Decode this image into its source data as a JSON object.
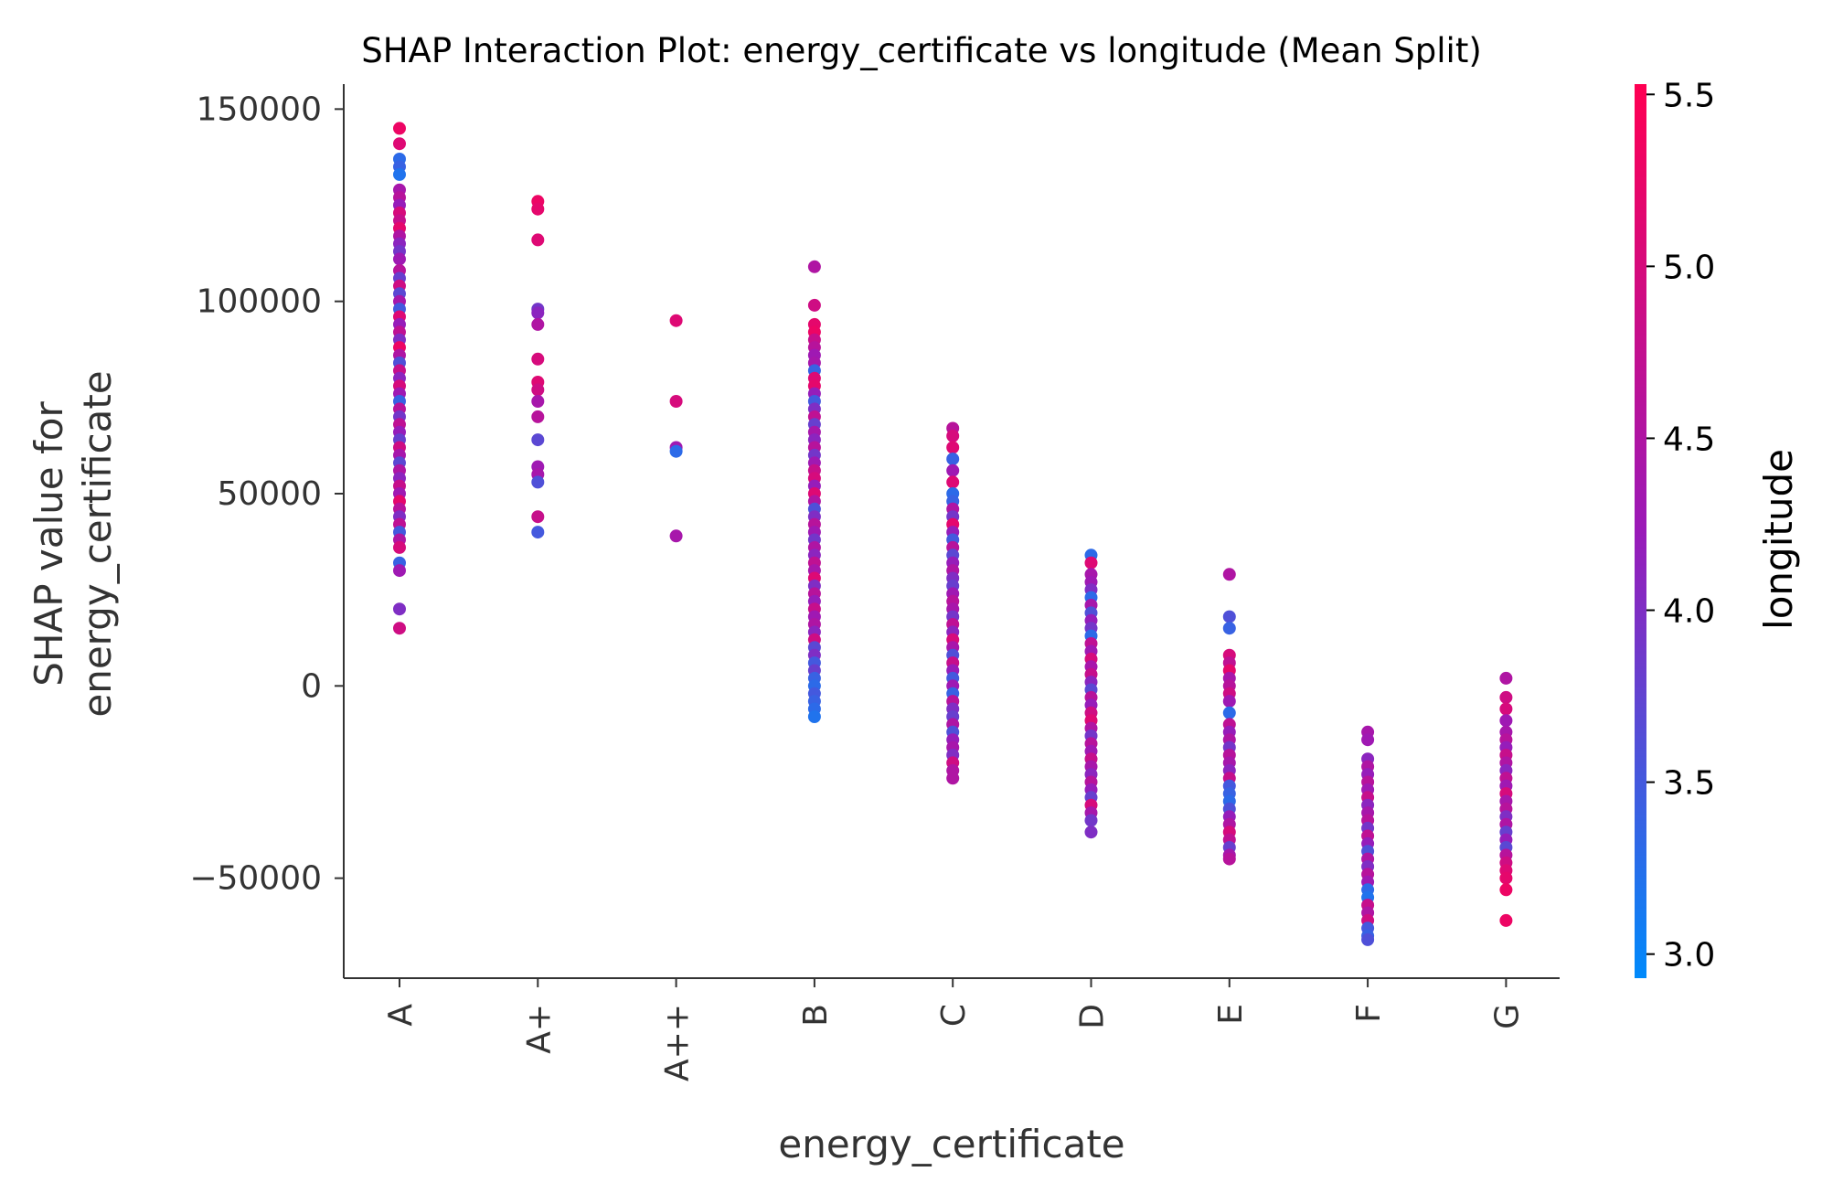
{
  "chart_data": {
    "type": "scatter",
    "title": "SHAP Interaction Plot: energy_certificate vs longitude (Mean Split)",
    "xlabel": "energy_certificate",
    "ylabel_line1": "SHAP value for",
    "ylabel_line2": "energy_certificate",
    "categories": [
      "A",
      "A+",
      "A++",
      "B",
      "C",
      "D",
      "E",
      "F",
      "G"
    ],
    "y_ticks": [
      {
        "value": 150000,
        "label": "150000"
      },
      {
        "value": 100000,
        "label": "100000"
      },
      {
        "value": 50000,
        "label": "50000"
      },
      {
        "value": 0,
        "label": "0"
      },
      {
        "value": -50000,
        "label": "−50000"
      }
    ],
    "ylim": [
      -76000,
      156500
    ],
    "grid": false,
    "colorbar": {
      "label": "longitude",
      "range": [
        2.93,
        5.53
      ],
      "ticks": [
        {
          "value": 5.5,
          "label": "5.5"
        },
        {
          "value": 5.0,
          "label": "5.0"
        },
        {
          "value": 4.5,
          "label": "4.5"
        },
        {
          "value": 4.0,
          "label": "4.0"
        },
        {
          "value": 3.5,
          "label": "3.5"
        },
        {
          "value": 3.0,
          "label": "3.0"
        }
      ],
      "colormap_low": "#008afb",
      "colormap_mid": "#9a1ab8",
      "colormap_high": "#ff0052"
    },
    "series": [
      {
        "category": "A",
        "points": [
          [
            145000,
            5.3
          ],
          [
            141000,
            5.1
          ],
          [
            137000,
            3.3
          ],
          [
            135000,
            3.4
          ],
          [
            133000,
            3.2
          ],
          [
            129000,
            4.4
          ],
          [
            127000,
            4.6
          ],
          [
            125000,
            4.2
          ],
          [
            123000,
            5.0
          ],
          [
            121000,
            4.8
          ],
          [
            119000,
            5.2
          ],
          [
            117000,
            4.5
          ],
          [
            115000,
            4.1
          ],
          [
            113000,
            3.9
          ],
          [
            111000,
            4.3
          ],
          [
            108000,
            4.6
          ],
          [
            106000,
            3.8
          ],
          [
            104000,
            4.9
          ],
          [
            102000,
            3.7
          ],
          [
            100000,
            4.4
          ],
          [
            98000,
            3.5
          ],
          [
            96000,
            5.1
          ],
          [
            94000,
            4.2
          ],
          [
            92000,
            4.7
          ],
          [
            90000,
            4.0
          ],
          [
            88000,
            5.3
          ],
          [
            86000,
            4.5
          ],
          [
            84000,
            3.6
          ],
          [
            82000,
            4.8
          ],
          [
            80000,
            4.1
          ],
          [
            78000,
            5.0
          ],
          [
            76000,
            4.3
          ],
          [
            74000,
            3.4
          ],
          [
            72000,
            4.6
          ],
          [
            70000,
            3.9
          ],
          [
            68000,
            4.7
          ],
          [
            66000,
            4.2
          ],
          [
            64000,
            3.8
          ],
          [
            62000,
            4.9
          ],
          [
            60000,
            4.4
          ],
          [
            58000,
            3.7
          ],
          [
            56000,
            4.5
          ],
          [
            54000,
            4.1
          ],
          [
            52000,
            4.8
          ],
          [
            50000,
            4.3
          ],
          [
            48000,
            5.2
          ],
          [
            46000,
            4.6
          ],
          [
            44000,
            4.0
          ],
          [
            42000,
            4.7
          ],
          [
            40000,
            3.5
          ],
          [
            38000,
            4.5
          ],
          [
            36000,
            5.0
          ],
          [
            32000,
            3.4
          ],
          [
            30000,
            4.3
          ],
          [
            20000,
            4.0
          ],
          [
            15000,
            4.9
          ]
        ]
      },
      {
        "category": "A+",
        "points": [
          [
            126000,
            5.3
          ],
          [
            124000,
            5.2
          ],
          [
            116000,
            5.1
          ],
          [
            98000,
            3.9
          ],
          [
            97000,
            4.1
          ],
          [
            94000,
            4.5
          ],
          [
            85000,
            5.0
          ],
          [
            79000,
            5.1
          ],
          [
            77000,
            4.9
          ],
          [
            74000,
            4.4
          ],
          [
            70000,
            4.6
          ],
          [
            64000,
            3.7
          ],
          [
            57000,
            4.3
          ],
          [
            55000,
            4.4
          ],
          [
            53000,
            3.6
          ],
          [
            44000,
            4.8
          ],
          [
            40000,
            3.5
          ]
        ]
      },
      {
        "category": "A++",
        "points": [
          [
            95000,
            5.1
          ],
          [
            74000,
            5.0
          ],
          [
            62000,
            4.3
          ],
          [
            61000,
            3.3
          ],
          [
            39000,
            4.4
          ]
        ]
      },
      {
        "category": "B",
        "points": [
          [
            109000,
            4.5
          ],
          [
            99000,
            4.9
          ],
          [
            94000,
            5.2
          ],
          [
            92000,
            5.3
          ],
          [
            90000,
            4.8
          ],
          [
            88000,
            4.6
          ],
          [
            86000,
            4.3
          ],
          [
            84000,
            4.4
          ],
          [
            82000,
            3.4
          ],
          [
            80000,
            5.1
          ],
          [
            78000,
            5.2
          ],
          [
            76000,
            4.2
          ],
          [
            74000,
            3.5
          ],
          [
            72000,
            4.0
          ],
          [
            70000,
            4.7
          ],
          [
            68000,
            3.8
          ],
          [
            66000,
            4.4
          ],
          [
            64000,
            4.1
          ],
          [
            62000,
            4.6
          ],
          [
            60000,
            3.9
          ],
          [
            58000,
            4.3
          ],
          [
            56000,
            4.8
          ],
          [
            54000,
            5.0
          ],
          [
            52000,
            4.2
          ],
          [
            50000,
            5.1
          ],
          [
            48000,
            4.5
          ],
          [
            46000,
            3.6
          ],
          [
            44000,
            4.0
          ],
          [
            42000,
            4.6
          ],
          [
            40000,
            4.3
          ],
          [
            38000,
            3.9
          ],
          [
            36000,
            4.5
          ],
          [
            34000,
            4.1
          ],
          [
            32000,
            4.7
          ],
          [
            30000,
            4.4
          ],
          [
            28000,
            5.1
          ],
          [
            26000,
            4.0
          ],
          [
            24000,
            4.6
          ],
          [
            22000,
            4.2
          ],
          [
            20000,
            4.8
          ],
          [
            18000,
            4.3
          ],
          [
            16000,
            4.5
          ],
          [
            14000,
            4.1
          ],
          [
            12000,
            4.9
          ],
          [
            10000,
            3.7
          ],
          [
            8000,
            4.0
          ],
          [
            6000,
            3.5
          ],
          [
            4000,
            3.8
          ],
          [
            2000,
            3.4
          ],
          [
            0,
            3.3
          ],
          [
            -2000,
            3.5
          ],
          [
            -4000,
            3.4
          ],
          [
            -6000,
            3.3
          ],
          [
            -8000,
            3.2
          ]
        ]
      },
      {
        "category": "C",
        "points": [
          [
            67000,
            4.6
          ],
          [
            65000,
            5.0
          ],
          [
            62000,
            5.1
          ],
          [
            59000,
            3.4
          ],
          [
            56000,
            4.3
          ],
          [
            53000,
            5.1
          ],
          [
            50000,
            3.3
          ],
          [
            48000,
            3.4
          ],
          [
            46000,
            4.5
          ],
          [
            44000,
            3.9
          ],
          [
            42000,
            5.2
          ],
          [
            40000,
            4.2
          ],
          [
            38000,
            3.5
          ],
          [
            36000,
            4.6
          ],
          [
            34000,
            3.7
          ],
          [
            32000,
            4.2
          ],
          [
            30000,
            4.5
          ],
          [
            28000,
            4.0
          ],
          [
            26000,
            3.8
          ],
          [
            24000,
            4.3
          ],
          [
            22000,
            4.6
          ],
          [
            20000,
            4.4
          ],
          [
            18000,
            3.9
          ],
          [
            16000,
            4.7
          ],
          [
            14000,
            4.1
          ],
          [
            12000,
            5.0
          ],
          [
            10000,
            4.4
          ],
          [
            8000,
            3.6
          ],
          [
            6000,
            4.8
          ],
          [
            4000,
            4.2
          ],
          [
            2000,
            3.5
          ],
          [
            0,
            4.3
          ],
          [
            -2000,
            3.4
          ],
          [
            -4000,
            4.6
          ],
          [
            -6000,
            4.0
          ],
          [
            -8000,
            3.8
          ],
          [
            -10000,
            4.5
          ],
          [
            -12000,
            3.6
          ],
          [
            -14000,
            4.2
          ],
          [
            -16000,
            4.4
          ],
          [
            -18000,
            4.0
          ],
          [
            -20000,
            4.9
          ],
          [
            -22000,
            4.5
          ],
          [
            -24000,
            4.5
          ]
        ]
      },
      {
        "category": "D",
        "points": [
          [
            34000,
            3.3
          ],
          [
            32000,
            5.1
          ],
          [
            29000,
            4.4
          ],
          [
            27000,
            4.3
          ],
          [
            25000,
            4.0
          ],
          [
            23000,
            3.3
          ],
          [
            21000,
            4.4
          ],
          [
            19000,
            3.6
          ],
          [
            17000,
            4.2
          ],
          [
            15000,
            3.9
          ],
          [
            13000,
            3.3
          ],
          [
            11000,
            4.7
          ],
          [
            9000,
            4.3
          ],
          [
            7000,
            5.0
          ],
          [
            5000,
            4.4
          ],
          [
            3000,
            4.8
          ],
          [
            1000,
            4.1
          ],
          [
            -1000,
            3.7
          ],
          [
            -3000,
            4.6
          ],
          [
            -5000,
            4.2
          ],
          [
            -7000,
            4.9
          ],
          [
            -9000,
            5.1
          ],
          [
            -11000,
            4.5
          ],
          [
            -13000,
            3.9
          ],
          [
            -15000,
            4.6
          ],
          [
            -17000,
            4.3
          ],
          [
            -19000,
            4.8
          ],
          [
            -21000,
            4.4
          ],
          [
            -23000,
            4.1
          ],
          [
            -25000,
            4.6
          ],
          [
            -27000,
            4.2
          ],
          [
            -29000,
            3.8
          ],
          [
            -31000,
            5.0
          ],
          [
            -33000,
            4.4
          ],
          [
            -35000,
            3.9
          ],
          [
            -38000,
            4.0
          ]
        ]
      },
      {
        "category": "E",
        "points": [
          [
            29000,
            4.5
          ],
          [
            18000,
            3.6
          ],
          [
            15000,
            3.4
          ],
          [
            8000,
            5.0
          ],
          [
            6000,
            4.7
          ],
          [
            4000,
            5.2
          ],
          [
            2000,
            4.4
          ],
          [
            0,
            4.6
          ],
          [
            -2000,
            4.9
          ],
          [
            -4000,
            4.3
          ],
          [
            -7000,
            3.3
          ],
          [
            -10000,
            4.7
          ],
          [
            -12000,
            4.2
          ],
          [
            -14000,
            4.5
          ],
          [
            -16000,
            3.9
          ],
          [
            -18000,
            4.6
          ],
          [
            -20000,
            4.4
          ],
          [
            -22000,
            4.1
          ],
          [
            -24000,
            4.8
          ],
          [
            -26000,
            3.5
          ],
          [
            -28000,
            3.4
          ],
          [
            -30000,
            3.3
          ],
          [
            -32000,
            3.6
          ],
          [
            -34000,
            4.2
          ],
          [
            -36000,
            4.5
          ],
          [
            -38000,
            5.0
          ],
          [
            -40000,
            4.7
          ],
          [
            -42000,
            3.8
          ],
          [
            -44000,
            4.4
          ],
          [
            -45000,
            4.6
          ]
        ]
      },
      {
        "category": "F",
        "points": [
          [
            -12000,
            4.4
          ],
          [
            -14000,
            4.3
          ],
          [
            -19000,
            4.1
          ],
          [
            -21000,
            4.5
          ],
          [
            -23000,
            4.2
          ],
          [
            -25000,
            4.6
          ],
          [
            -27000,
            4.3
          ],
          [
            -29000,
            4.8
          ],
          [
            -31000,
            4.1
          ],
          [
            -33000,
            4.4
          ],
          [
            -35000,
            4.6
          ],
          [
            -37000,
            3.9
          ],
          [
            -39000,
            4.7
          ],
          [
            -41000,
            4.2
          ],
          [
            -43000,
            3.6
          ],
          [
            -45000,
            4.5
          ],
          [
            -47000,
            4.0
          ],
          [
            -49000,
            4.6
          ],
          [
            -51000,
            4.3
          ],
          [
            -53000,
            3.3
          ],
          [
            -55000,
            3.2
          ],
          [
            -57000,
            4.8
          ],
          [
            -59000,
            4.5
          ],
          [
            -61000,
            4.9
          ],
          [
            -63000,
            3.5
          ],
          [
            -65000,
            3.4
          ],
          [
            -66000,
            3.6
          ]
        ]
      },
      {
        "category": "G",
        "points": [
          [
            2000,
            4.5
          ],
          [
            -3000,
            4.9
          ],
          [
            -6000,
            5.0
          ],
          [
            -9000,
            4.3
          ],
          [
            -12000,
            4.4
          ],
          [
            -14000,
            4.6
          ],
          [
            -16000,
            4.2
          ],
          [
            -18000,
            4.8
          ],
          [
            -20000,
            4.5
          ],
          [
            -22000,
            4.1
          ],
          [
            -24000,
            4.7
          ],
          [
            -26000,
            4.3
          ],
          [
            -28000,
            5.0
          ],
          [
            -30000,
            4.4
          ],
          [
            -32000,
            4.6
          ],
          [
            -34000,
            4.0
          ],
          [
            -36000,
            4.5
          ],
          [
            -38000,
            3.8
          ],
          [
            -40000,
            4.2
          ],
          [
            -42000,
            3.7
          ],
          [
            -44000,
            4.6
          ],
          [
            -46000,
            4.9
          ],
          [
            -48000,
            5.1
          ],
          [
            -50000,
            5.2
          ],
          [
            -53000,
            5.3
          ],
          [
            -61000,
            5.3
          ]
        ]
      }
    ]
  }
}
